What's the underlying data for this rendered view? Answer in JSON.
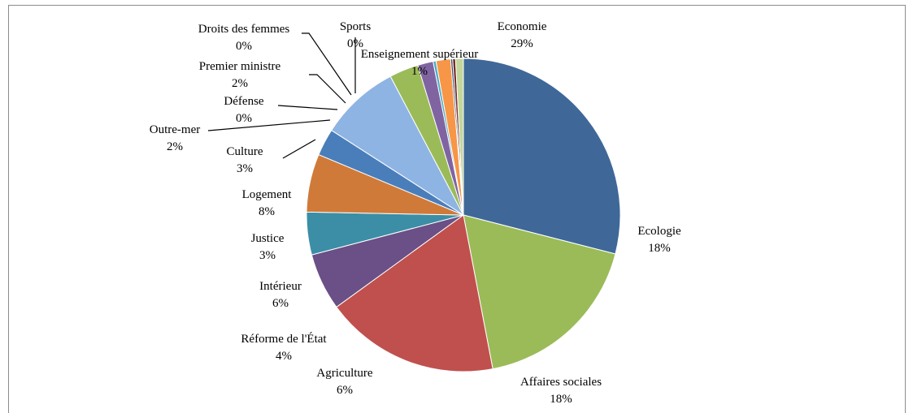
{
  "chart_data": {
    "type": "pie",
    "data_labels": "category and percentage",
    "start": "12 o'clock, clockwise",
    "slices": [
      {
        "label": "Economie",
        "percent_label": "29%",
        "value": 29.0,
        "color": "#3f6898"
      },
      {
        "label": "Ecologie",
        "percent_label": "18%",
        "value": 18.0,
        "color": "#9bbb59"
      },
      {
        "label": "Affaires sociales",
        "percent_label": "18%",
        "value": 18.0,
        "color": "#c0504d"
      },
      {
        "label": "Agriculture",
        "percent_label": "6%",
        "value": 5.9,
        "color": "#6a5086"
      },
      {
        "label": "Réforme de l'État",
        "percent_label": "4%",
        "value": 4.4,
        "color": "#3b8ea5"
      },
      {
        "label": "Intérieur",
        "percent_label": "6%",
        "value": 6.0,
        "color": "#d07a3a"
      },
      {
        "label": "Justice",
        "percent_label": "3%",
        "value": 2.8,
        "color": "#4a7ebb"
      },
      {
        "label": "Logement",
        "percent_label": "8%",
        "value": 8.2,
        "color": "#8eb4e3"
      },
      {
        "label": "Culture",
        "percent_label": "3%",
        "value": 3.0,
        "color": "#9bbb59"
      },
      {
        "label": "Outre-mer",
        "percent_label": "2%",
        "value": 1.6,
        "color": "#8064a2"
      },
      {
        "label": "Défense",
        "percent_label": "0%",
        "value": 0.3,
        "color": "#4bacc6"
      },
      {
        "label": "Premier ministre",
        "percent_label": "2%",
        "value": 1.5,
        "color": "#f79646"
      },
      {
        "label": "Droits des femmes",
        "percent_label": "0%",
        "value": 0.2,
        "color": "#2c4d75"
      },
      {
        "label": "Sports",
        "percent_label": "0%",
        "value": 0.3,
        "color": "#772c2a"
      },
      {
        "label": "Enseignement supérieur",
        "percent_label": "1%",
        "value": 0.8,
        "color": "#c4d79b"
      }
    ]
  }
}
